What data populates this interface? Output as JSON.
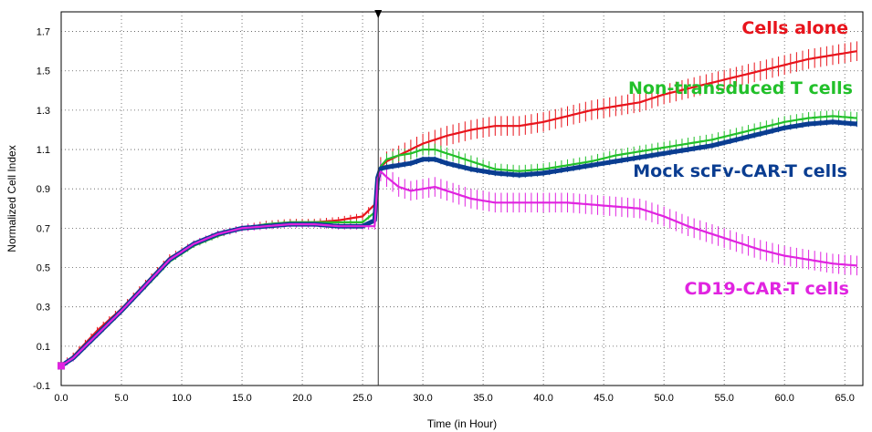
{
  "chart_data": {
    "type": "line",
    "title": "",
    "xlabel": "Time (in Hour)",
    "ylabel": "Normalized Cell Index",
    "xlim": [
      0,
      66.5
    ],
    "ylim": [
      -0.1,
      1.8
    ],
    "xticks": [
      "0.0",
      "5.0",
      "10.0",
      "15.0",
      "20.0",
      "25.0",
      "30.0",
      "35.0",
      "40.0",
      "45.0",
      "50.0",
      "55.0",
      "60.0",
      "65.0"
    ],
    "yticks": [
      "-0.1",
      "0.1",
      "0.3",
      "0.5",
      "0.7",
      "0.9",
      "1.1",
      "1.3",
      "1.5",
      "1.7"
    ],
    "grid": true,
    "legend": "inline labels at right",
    "marker_time": 26.3,
    "series": [
      {
        "name": "Cells alone",
        "color": "#e8141c",
        "error": 0.05,
        "x": [
          0,
          1,
          3,
          5,
          7,
          9,
          11,
          13,
          15,
          17,
          19,
          21,
          23,
          25,
          26,
          26.3,
          27,
          28,
          29,
          30,
          32,
          34,
          36,
          38,
          40,
          42,
          44,
          46,
          48,
          50,
          52,
          54,
          56,
          58,
          60,
          62,
          64,
          66
        ],
        "values": [
          0.0,
          0.05,
          0.18,
          0.29,
          0.42,
          0.55,
          0.62,
          0.67,
          0.7,
          0.72,
          0.73,
          0.73,
          0.74,
          0.76,
          0.82,
          1.0,
          1.04,
          1.07,
          1.1,
          1.13,
          1.17,
          1.2,
          1.22,
          1.22,
          1.24,
          1.27,
          1.3,
          1.32,
          1.34,
          1.38,
          1.41,
          1.44,
          1.47,
          1.5,
          1.53,
          1.56,
          1.58,
          1.6
        ]
      },
      {
        "name": "Non-transduced T cells",
        "color": "#22c02a",
        "error": 0.03,
        "x": [
          0,
          1,
          3,
          5,
          7,
          9,
          11,
          13,
          15,
          17,
          19,
          21,
          23,
          25,
          26,
          26.3,
          27,
          28,
          29,
          30,
          31,
          32,
          34,
          36,
          38,
          40,
          42,
          44,
          46,
          48,
          50,
          52,
          54,
          56,
          58,
          60,
          62,
          64,
          66
        ],
        "values": [
          0.0,
          0.04,
          0.16,
          0.28,
          0.4,
          0.53,
          0.61,
          0.66,
          0.7,
          0.72,
          0.73,
          0.73,
          0.73,
          0.73,
          0.78,
          1.0,
          1.05,
          1.07,
          1.08,
          1.1,
          1.1,
          1.08,
          1.04,
          1.0,
          0.99,
          1.0,
          1.02,
          1.04,
          1.07,
          1.09,
          1.11,
          1.13,
          1.15,
          1.18,
          1.21,
          1.24,
          1.26,
          1.27,
          1.26
        ]
      },
      {
        "name": "Mock scFv-CAR-T cells",
        "color": "#0a3d91",
        "error": 0.015,
        "x": [
          0,
          1,
          3,
          5,
          7,
          9,
          11,
          13,
          15,
          17,
          19,
          21,
          23,
          25,
          26,
          26.3,
          27,
          28,
          29,
          30,
          31,
          32,
          34,
          36,
          38,
          40,
          42,
          44,
          46,
          48,
          50,
          52,
          54,
          56,
          58,
          60,
          62,
          64,
          66
        ],
        "values": [
          0.0,
          0.04,
          0.16,
          0.28,
          0.41,
          0.54,
          0.62,
          0.67,
          0.7,
          0.71,
          0.72,
          0.72,
          0.71,
          0.71,
          0.74,
          1.0,
          1.01,
          1.02,
          1.03,
          1.05,
          1.05,
          1.03,
          1.0,
          0.98,
          0.97,
          0.98,
          1.0,
          1.02,
          1.04,
          1.06,
          1.08,
          1.1,
          1.12,
          1.15,
          1.18,
          1.21,
          1.23,
          1.24,
          1.23
        ]
      },
      {
        "name": "CD19-CAR-T cells",
        "color": "#e024e0",
        "error": 0.05,
        "x": [
          0,
          1,
          3,
          5,
          7,
          9,
          11,
          13,
          15,
          17,
          19,
          21,
          23,
          25,
          26,
          26.3,
          27,
          28,
          29,
          30,
          31,
          32,
          34,
          36,
          38,
          40,
          42,
          44,
          46,
          48,
          50,
          52,
          54,
          56,
          58,
          60,
          62,
          64,
          66
        ],
        "values": [
          0.0,
          0.04,
          0.16,
          0.28,
          0.41,
          0.54,
          0.62,
          0.67,
          0.7,
          0.71,
          0.72,
          0.72,
          0.71,
          0.71,
          0.71,
          1.0,
          0.96,
          0.91,
          0.89,
          0.9,
          0.91,
          0.89,
          0.85,
          0.83,
          0.83,
          0.83,
          0.83,
          0.82,
          0.81,
          0.8,
          0.76,
          0.71,
          0.67,
          0.63,
          0.59,
          0.56,
          0.54,
          0.52,
          0.51
        ]
      }
    ]
  }
}
